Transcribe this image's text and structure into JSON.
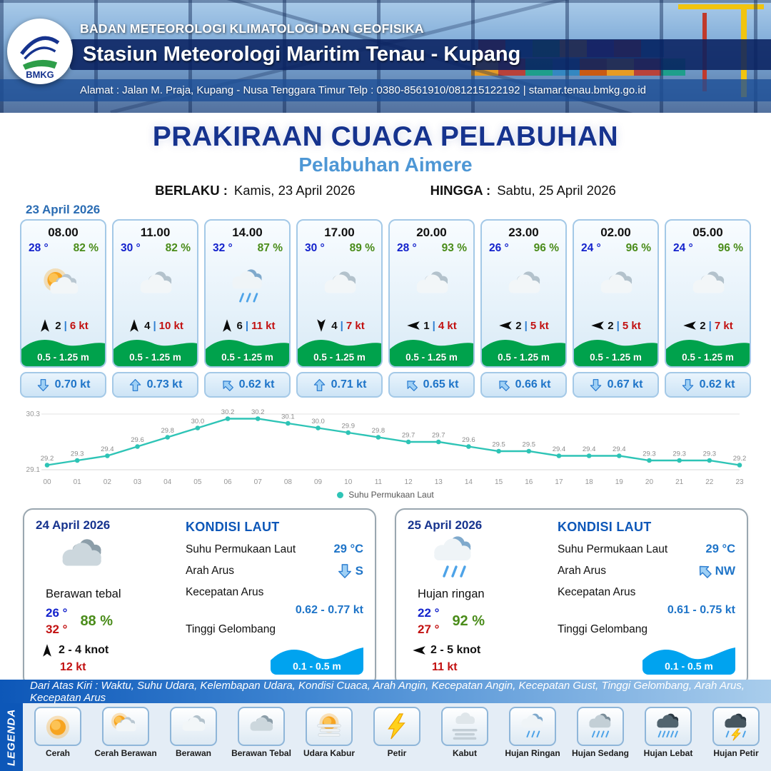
{
  "colors": {
    "accent_navy": "#16338e",
    "accent_blue": "#4e97d5",
    "wave_green": "#00a24c",
    "wave_blue": "#00a3ef",
    "temp_blue": "#1322cc",
    "temp_red": "#c21111",
    "humidity_green": "#4a8c1a",
    "current_blue": "#1e74c8",
    "chart_teal": "#2ec4b6"
  },
  "header": {
    "logo_text": "BMKG",
    "agency": "BADAN METEOROLOGI KLIMATOLOGI DAN GEOFISIKA",
    "station": "Stasiun Meteorologi Maritim Tenau - Kupang",
    "address": "Alamat : Jalan M. Praja, Kupang - Nusa Tenggara Timur Telp : 0380-8561910/081215122192  | stamar.tenau.bmkg.go.id"
  },
  "title": {
    "main": "PRAKIRAAN CUACA PELABUHAN",
    "subtitle": "Pelabuhan Aimere",
    "valid_label": "BERLAKU :",
    "valid_value": "Kamis, 23 April 2026",
    "until_label": "HINGGA :",
    "until_value": "Sabtu, 25 April 2026"
  },
  "forecast": {
    "date": "23 April 2026",
    "separator": "|",
    "cards": [
      {
        "time": "08.00",
        "temp": "28 °",
        "humidity": "82 %",
        "icon": "sun-cloud",
        "wind_dir": "up",
        "wind_speed": "2",
        "gust": "6 kt",
        "wave_height": "0.5 - 1.25 m",
        "current_dir": "down",
        "current_speed": "0.70 kt"
      },
      {
        "time": "11.00",
        "temp": "30 °",
        "humidity": "82 %",
        "icon": "cloud",
        "wind_dir": "up",
        "wind_speed": "4",
        "gust": "10 kt",
        "wave_height": "0.5 - 1.25 m",
        "current_dir": "up",
        "current_speed": "0.73 kt"
      },
      {
        "time": "14.00",
        "temp": "32 °",
        "humidity": "87 %",
        "icon": "rain-light",
        "wind_dir": "up",
        "wind_speed": "6",
        "gust": "11 kt",
        "wave_height": "0.5 - 1.25 m",
        "current_dir": "up-left",
        "current_speed": "0.62 kt"
      },
      {
        "time": "17.00",
        "temp": "30 °",
        "humidity": "89 %",
        "icon": "cloud",
        "wind_dir": "down",
        "wind_speed": "4",
        "gust": "7 kt",
        "wave_height": "0.5 - 1.25 m",
        "current_dir": "up",
        "current_speed": "0.71 kt"
      },
      {
        "time": "20.00",
        "temp": "28 °",
        "humidity": "93 %",
        "icon": "cloud",
        "wind_dir": "left",
        "wind_speed": "1",
        "gust": "4 kt",
        "wave_height": "0.5 - 1.25 m",
        "current_dir": "up-left",
        "current_speed": "0.65 kt"
      },
      {
        "time": "23.00",
        "temp": "26 °",
        "humidity": "96 %",
        "icon": "cloud",
        "wind_dir": "left",
        "wind_speed": "2",
        "gust": "5 kt",
        "wave_height": "0.5 - 1.25 m",
        "current_dir": "up-left",
        "current_speed": "0.66 kt"
      },
      {
        "time": "02.00",
        "temp": "24 °",
        "humidity": "96 %",
        "icon": "cloud",
        "wind_dir": "left",
        "wind_speed": "2",
        "gust": "5 kt",
        "wave_height": "0.5 - 1.25 m",
        "current_dir": "down",
        "current_speed": "0.67 kt"
      },
      {
        "time": "05.00",
        "temp": "24 °",
        "humidity": "96 %",
        "icon": "cloud",
        "wind_dir": "left",
        "wind_speed": "2",
        "gust": "7 kt",
        "wave_height": "0.5 - 1.25 m",
        "current_dir": "down",
        "current_speed": "0.62 kt"
      }
    ]
  },
  "chart_data": {
    "type": "line",
    "legend_label": "Suhu Permukaan Laut",
    "legend_position": "bottom",
    "color": "#2ec4b6",
    "ylim": [
      29.1,
      30.3
    ],
    "x": [
      "00",
      "01",
      "02",
      "03",
      "04",
      "05",
      "06",
      "07",
      "08",
      "09",
      "10",
      "11",
      "12",
      "13",
      "14",
      "15",
      "16",
      "17",
      "18",
      "19",
      "20",
      "21",
      "22",
      "23"
    ],
    "values": [
      29.2,
      29.3,
      29.4,
      29.6,
      29.8,
      30.0,
      30.2,
      30.2,
      30.1,
      30.0,
      29.9,
      29.8,
      29.7,
      29.7,
      29.6,
      29.5,
      29.5,
      29.4,
      29.4,
      29.4,
      29.3,
      29.3,
      29.3,
      29.2
    ]
  },
  "daily": [
    {
      "date": "24 April 2026",
      "icon": "cloud-thick",
      "condition": "Berawan tebal",
      "temp_min": "26 °",
      "temp_max": "32 °",
      "humidity": "88 %",
      "wind_dir": "up",
      "wind": "2 - 4 knot",
      "gust": "12 kt",
      "sea": {
        "title": "KONDISI LAUT",
        "sst_label": "Suhu Permukaan Laut",
        "sst": "29 °C",
        "dir_label": "Arah Arus",
        "current_dir": "down",
        "current_dir_text": "S",
        "speed_label": "Kecepatan Arus",
        "speed": "0.62 - 0.77 kt",
        "wave_label": "Tinggi Gelombang",
        "wave": "0.1 - 0.5 m"
      }
    },
    {
      "date": "25 April 2026",
      "icon": "rain-light",
      "condition": "Hujan ringan",
      "temp_min": "22 °",
      "temp_max": "27 °",
      "humidity": "92 %",
      "wind_dir": "left",
      "wind": "2 - 5 knot",
      "gust": "11 kt",
      "sea": {
        "title": "KONDISI LAUT",
        "sst_label": "Suhu Permukaan Laut",
        "sst": "29 °C",
        "dir_label": "Arah Arus",
        "current_dir": "up-left",
        "current_dir_text": "NW",
        "speed_label": "Kecepatan Arus",
        "speed": "0.61 - 0.75 kt",
        "wave_label": "Tinggi Gelombang",
        "wave": "0.1 - 0.5 m"
      }
    }
  ],
  "legend": {
    "note": "Dari Atas Kiri : Waktu, Suhu Udara, Kelembapan Udara, Kondisi Cuaca, Arah Angin, Kecepatan Angin, Kecepatan Gust, Tinggi Gelombang, Arah Arus, Kecepatan Arus",
    "side_label": "LEGENDA",
    "items": [
      {
        "label": "Cerah",
        "icon": "sun"
      },
      {
        "label": "Cerah Berawan",
        "icon": "sun-cloud"
      },
      {
        "label": "Berawan",
        "icon": "cloud"
      },
      {
        "label": "Berawan Tebal",
        "icon": "cloud-thick"
      },
      {
        "label": "Udara Kabur",
        "icon": "haze"
      },
      {
        "label": "Petir",
        "icon": "lightning"
      },
      {
        "label": "Kabut",
        "icon": "fog"
      },
      {
        "label": "Hujan Ringan",
        "icon": "rain-light"
      },
      {
        "label": "Hujan Sedang",
        "icon": "rain-medium"
      },
      {
        "label": "Hujan Lebat",
        "icon": "rain-heavy"
      },
      {
        "label": "Hujan Petir",
        "icon": "storm"
      }
    ]
  }
}
